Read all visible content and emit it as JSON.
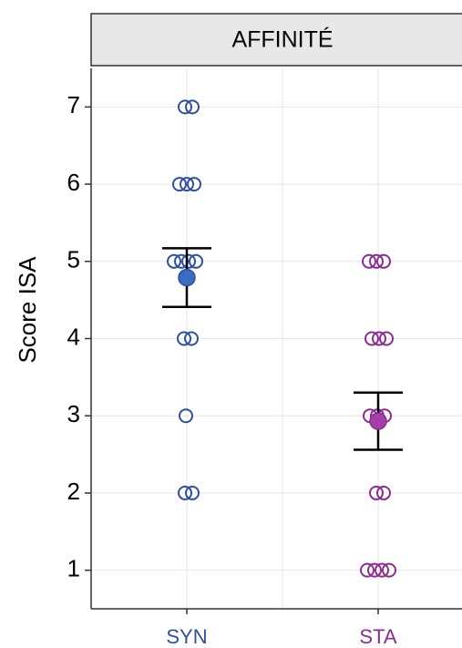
{
  "chart_data": {
    "type": "strip",
    "title": "AFFINITÉ",
    "y_label": "Score ISA",
    "categories": [
      "SYN",
      "STA"
    ],
    "series": [
      {
        "color": "#2f4fa0",
        "mean_color": "#3b6cc2",
        "values": [
          7,
          7,
          6,
          6,
          6,
          5,
          5,
          5,
          5,
          4,
          4,
          3,
          2,
          2
        ],
        "mean": 4.79,
        "error": 0.38
      },
      {
        "color": "#8a2d8e",
        "mean_color": "#a33fa6",
        "values": [
          5,
          5,
          5,
          4,
          4,
          4,
          3,
          3,
          3,
          2,
          2,
          1,
          1,
          1,
          1
        ],
        "mean": 2.93,
        "error": 0.37
      }
    ],
    "ylim": [
      0.5,
      7.5
    ],
    "yticks": [
      1,
      2,
      3,
      4,
      5,
      6,
      7
    ],
    "grid": true
  }
}
